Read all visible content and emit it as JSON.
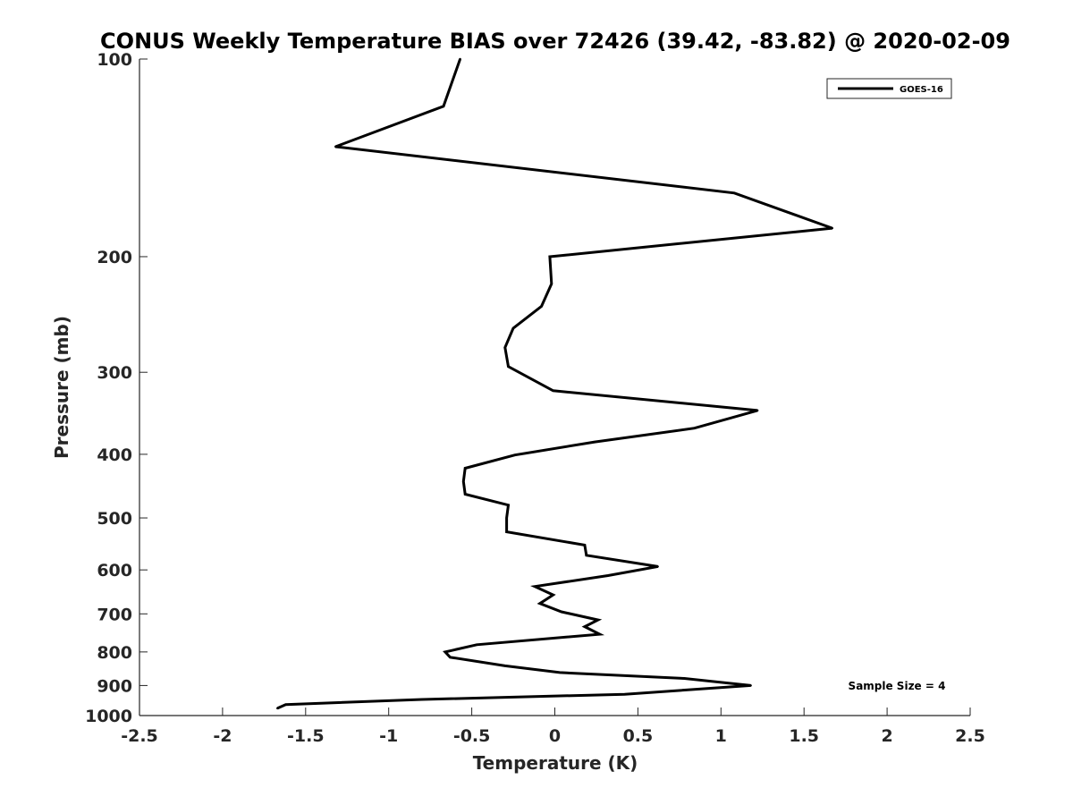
{
  "chart_data": {
    "type": "line",
    "title": "CONUS Weekly Temperature BIAS over 72426 (39.42, -83.82) @ 2020-02-09",
    "xlabel": "Temperature (K)",
    "ylabel": "Pressure (mb)",
    "xlim": [
      -2.5,
      2.5
    ],
    "ylim": [
      1000,
      100
    ],
    "y_scale": "log",
    "x_ticks": [
      "-2.5",
      "-2",
      "-1.5",
      "-1",
      "-0.5",
      "0",
      "0.5",
      "1",
      "1.5",
      "2",
      "2.5"
    ],
    "y_ticks": [
      "100",
      "200",
      "300",
      "400",
      "500",
      "600",
      "700",
      "800",
      "900",
      "1000"
    ],
    "grid": false,
    "legend_position": "top-right",
    "annotation": "Sample Size = 4",
    "series": [
      {
        "name": "GOES-16",
        "color": "#000000",
        "points": [
          {
            "x": -0.57,
            "p": 100
          },
          {
            "x": -0.67,
            "p": 118
          },
          {
            "x": -1.32,
            "p": 136
          },
          {
            "x": 1.08,
            "p": 160
          },
          {
            "x": 1.67,
            "p": 181
          },
          {
            "x": -0.03,
            "p": 200
          },
          {
            "x": -0.02,
            "p": 220
          },
          {
            "x": -0.08,
            "p": 238
          },
          {
            "x": -0.25,
            "p": 257
          },
          {
            "x": -0.3,
            "p": 275
          },
          {
            "x": -0.28,
            "p": 294
          },
          {
            "x": -0.01,
            "p": 320
          },
          {
            "x": 1.22,
            "p": 343
          },
          {
            "x": 0.84,
            "p": 365
          },
          {
            "x": 0.24,
            "p": 383
          },
          {
            "x": -0.24,
            "p": 401
          },
          {
            "x": -0.54,
            "p": 420
          },
          {
            "x": -0.55,
            "p": 440
          },
          {
            "x": -0.54,
            "p": 460
          },
          {
            "x": -0.28,
            "p": 478
          },
          {
            "x": -0.29,
            "p": 500
          },
          {
            "x": -0.29,
            "p": 525
          },
          {
            "x": 0.18,
            "p": 550
          },
          {
            "x": 0.19,
            "p": 570
          },
          {
            "x": 0.62,
            "p": 593
          },
          {
            "x": 0.32,
            "p": 612
          },
          {
            "x": -0.12,
            "p": 636
          },
          {
            "x": -0.01,
            "p": 655
          },
          {
            "x": -0.09,
            "p": 675
          },
          {
            "x": 0.04,
            "p": 695
          },
          {
            "x": 0.26,
            "p": 715
          },
          {
            "x": 0.18,
            "p": 732
          },
          {
            "x": 0.27,
            "p": 752
          },
          {
            "x": -0.47,
            "p": 780
          },
          {
            "x": -0.66,
            "p": 800
          },
          {
            "x": -0.63,
            "p": 815
          },
          {
            "x": -0.3,
            "p": 840
          },
          {
            "x": 0.03,
            "p": 860
          },
          {
            "x": 0.78,
            "p": 878
          },
          {
            "x": 1.18,
            "p": 900
          },
          {
            "x": 0.42,
            "p": 928
          },
          {
            "x": -0.8,
            "p": 945
          },
          {
            "x": -1.62,
            "p": 962
          },
          {
            "x": -1.67,
            "p": 975
          }
        ]
      }
    ]
  }
}
